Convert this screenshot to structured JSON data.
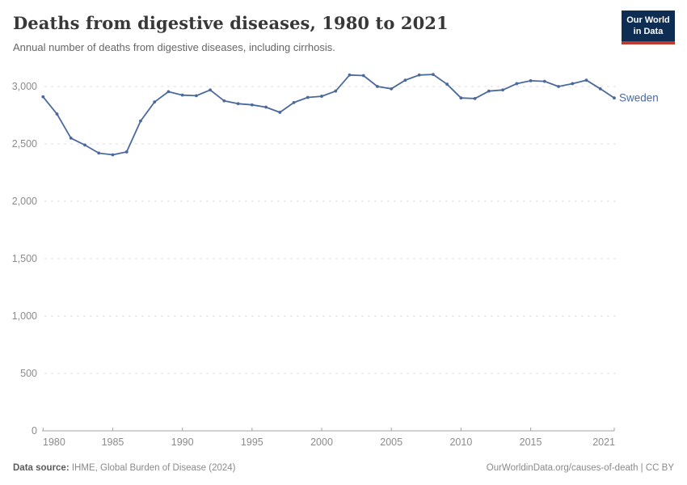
{
  "header": {
    "title": "Deaths from digestive diseases, 1980 to 2021",
    "subtitle": "Annual number of deaths from digestive diseases, including cirrhosis."
  },
  "logo": {
    "line1": "Our World",
    "line2": "in Data",
    "bg_color": "#0d2e52",
    "bar_color": "#bc3a2e"
  },
  "chart_data": {
    "type": "line",
    "title": "Deaths from digestive diseases, 1980 to 2021",
    "x": [
      1980,
      1981,
      1982,
      1983,
      1984,
      1985,
      1986,
      1987,
      1988,
      1989,
      1990,
      1991,
      1992,
      1993,
      1994,
      1995,
      1996,
      1997,
      1998,
      1999,
      2000,
      2001,
      2002,
      2003,
      2004,
      2005,
      2006,
      2007,
      2008,
      2009,
      2010,
      2011,
      2012,
      2013,
      2014,
      2015,
      2016,
      2017,
      2018,
      2019,
      2020,
      2021
    ],
    "series": [
      {
        "name": "Sweden",
        "color": "#4b699d",
        "values": [
          2910,
          2760,
          2550,
          2490,
          2420,
          2405,
          2430,
          2700,
          2865,
          2955,
          2925,
          2920,
          2970,
          2875,
          2850,
          2840,
          2820,
          2775,
          2860,
          2905,
          2915,
          2960,
          3100,
          3095,
          3000,
          2980,
          3055,
          3100,
          3105,
          3020,
          2900,
          2895,
          2960,
          2970,
          3025,
          3050,
          3045,
          3000,
          3025,
          3055,
          2980,
          2900
        ]
      }
    ],
    "xlabel": "",
    "ylabel": "",
    "xticks": [
      1980,
      1985,
      1990,
      1995,
      2000,
      2005,
      2010,
      2015,
      2021
    ],
    "yticks": [
      0,
      500,
      1000,
      1500,
      2000,
      2500,
      3000
    ],
    "ylim": [
      0,
      3150
    ],
    "xlim": [
      1980,
      2021
    ],
    "grid": true,
    "gridline_color": "#dedede",
    "axis_color": "#a3a3a3",
    "tick_label_color": "#8b8b8b",
    "legend_position": "end-of-line-label"
  },
  "footer": {
    "source_label": "Data source:",
    "source_text": " IHME, Global Burden of Disease (2024)",
    "right_text": "OurWorldinData.org/causes-of-death | CC BY"
  }
}
